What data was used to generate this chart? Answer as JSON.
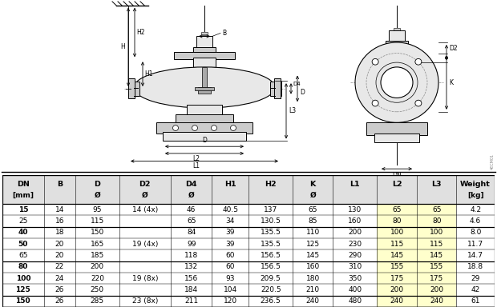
{
  "rows": [
    [
      "15",
      "14",
      "95",
      "14 (4x)",
      "46",
      "40.5",
      "137",
      "65",
      "130",
      "65",
      "65",
      "4.2"
    ],
    [
      "25",
      "16",
      "115",
      "",
      "65",
      "34",
      "130.5",
      "85",
      "160",
      "80",
      "80",
      "4.6"
    ],
    [
      "40",
      "18",
      "150",
      "",
      "84",
      "39",
      "135.5",
      "110",
      "200",
      "100",
      "100",
      "8.0"
    ],
    [
      "50",
      "20",
      "165",
      "19 (4x)",
      "99",
      "39",
      "135.5",
      "125",
      "230",
      "115",
      "115",
      "11.7"
    ],
    [
      "65",
      "20",
      "185",
      "",
      "118",
      "60",
      "156.5",
      "145",
      "290",
      "145",
      "145",
      "14.7"
    ],
    [
      "80",
      "22",
      "200",
      "",
      "132",
      "60",
      "156.5",
      "160",
      "310",
      "155",
      "155",
      "18.8"
    ],
    [
      "100",
      "24",
      "220",
      "19 (8x)",
      "156",
      "93",
      "209.5",
      "180",
      "350",
      "175",
      "175",
      "29"
    ],
    [
      "125",
      "26",
      "250",
      "",
      "184",
      "104",
      "220.5",
      "210",
      "400",
      "200",
      "200",
      "42"
    ],
    [
      "150",
      "26",
      "285",
      "23 (8x)",
      "211",
      "120",
      "236.5",
      "240",
      "480",
      "240",
      "240",
      "61"
    ]
  ],
  "group_separators": [
    2,
    5,
    8
  ],
  "highlight_cols": [
    9,
    10
  ],
  "highlight_col_color": "#ffffcc",
  "header_bg": "#e0e0e0",
  "bg_color": "#ffffff",
  "line_color": "#000000"
}
